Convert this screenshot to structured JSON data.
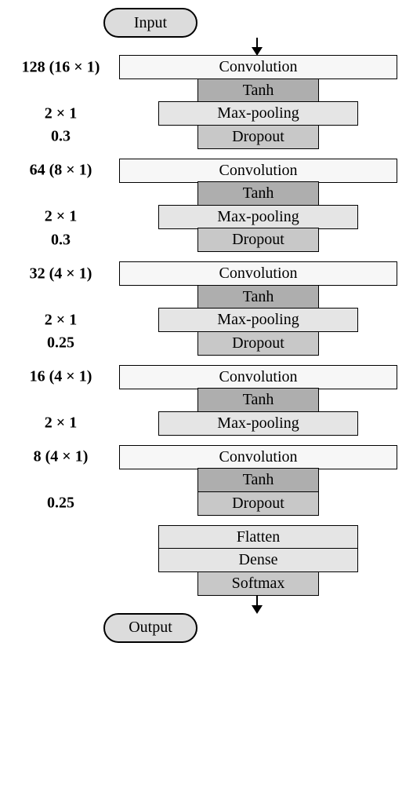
{
  "colors": {
    "terminal_bg": "#dcdcdc",
    "conv_bg": "#f7f7f7",
    "tanh_bg": "#aeaeae",
    "pool_bg": "#e5e5e5",
    "dropout_bg": "#c8c8c8",
    "flatten_bg": "#e5e5e5",
    "dense_bg": "#e5e5e5",
    "softmax_bg": "#c8c8c8"
  },
  "input": "Input",
  "output": "Output",
  "blocks": [
    {
      "conv": {
        "param": "128 (16 × 1)",
        "label": "Convolution"
      },
      "tanh": {
        "label": "Tanh"
      },
      "pool": {
        "param": "2 × 1",
        "label": "Max-pooling"
      },
      "dropout": {
        "param": "0.3",
        "label": "Dropout"
      }
    },
    {
      "conv": {
        "param": "64 (8 × 1)",
        "label": "Convolution"
      },
      "tanh": {
        "label": "Tanh"
      },
      "pool": {
        "param": "2 × 1",
        "label": "Max-pooling"
      },
      "dropout": {
        "param": "0.3",
        "label": "Dropout"
      }
    },
    {
      "conv": {
        "param": "32 (4 × 1)",
        "label": "Convolution"
      },
      "tanh": {
        "label": "Tanh"
      },
      "pool": {
        "param": "2 × 1",
        "label": "Max-pooling"
      },
      "dropout": {
        "param": "0.25",
        "label": "Dropout"
      }
    },
    {
      "conv": {
        "param": "16 (4 × 1)",
        "label": "Convolution"
      },
      "tanh": {
        "label": "Tanh"
      },
      "pool": {
        "param": "2 × 1",
        "label": "Max-pooling"
      }
    },
    {
      "conv": {
        "param": "8 (4 × 1)",
        "label": "Convolution"
      },
      "tanh": {
        "label": "Tanh"
      },
      "dropout": {
        "param": "0.25",
        "label": "Dropout"
      }
    }
  ],
  "tail": {
    "flatten": "Flatten",
    "dense": "Dense",
    "softmax": "Softmax"
  }
}
